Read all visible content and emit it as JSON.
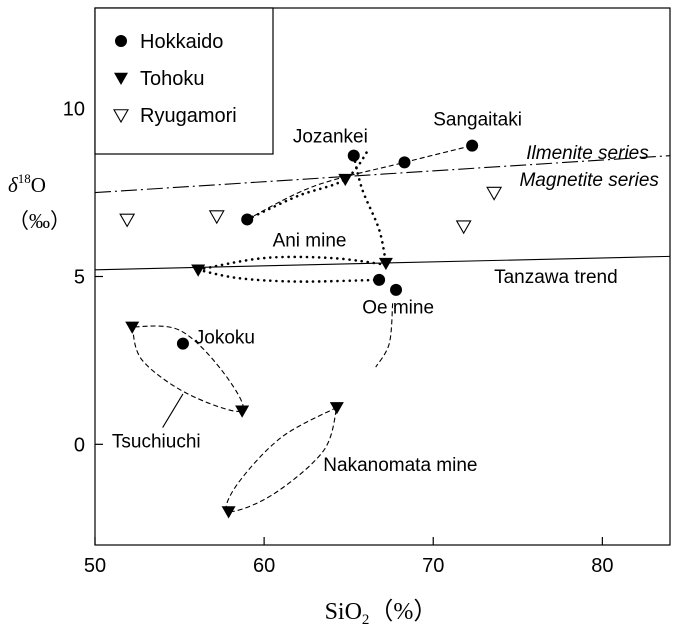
{
  "chart_data": {
    "type": "scatter",
    "xlabel_main": "SiO",
    "xlabel_sub": "2",
    "xlabel_unit": "（%）",
    "ylabel_delta": "δ",
    "ylabel_sup": "18",
    "ylabel_main": "O",
    "ylabel_unit": "（‰）",
    "xlim": [
      50,
      84
    ],
    "ylim": [
      -3,
      13
    ],
    "x_ticks": [
      50,
      60,
      70,
      80
    ],
    "y_ticks": [
      0,
      5,
      10
    ],
    "grid": false,
    "legend_position": "top-left",
    "legend": [
      {
        "name": "Hokkaido",
        "marker": "filled-circle"
      },
      {
        "name": "Tohoku",
        "marker": "filled-triangle-down"
      },
      {
        "name": "Ryugamori",
        "marker": "open-triangle-down"
      }
    ],
    "series": [
      {
        "name": "Hokkaido",
        "marker": "filled-circle",
        "points": [
          [
            59.0,
            6.7
          ],
          [
            65.3,
            8.6
          ],
          [
            68.3,
            8.4
          ],
          [
            72.3,
            8.9
          ],
          [
            66.8,
            4.9
          ],
          [
            67.8,
            4.6
          ],
          [
            55.2,
            3.0
          ]
        ]
      },
      {
        "name": "Tohoku",
        "marker": "filled-triangle-down",
        "points": [
          [
            64.8,
            7.9
          ],
          [
            56.1,
            5.2
          ],
          [
            67.2,
            5.4
          ],
          [
            52.2,
            3.5
          ],
          [
            58.7,
            1.0
          ],
          [
            64.3,
            1.1
          ],
          [
            57.9,
            -2.0
          ]
        ]
      },
      {
        "name": "Ryugamori",
        "marker": "open-triangle-down",
        "points": [
          [
            51.9,
            6.7
          ],
          [
            57.2,
            6.8
          ],
          [
            71.8,
            6.5
          ],
          [
            73.6,
            7.5
          ]
        ]
      }
    ],
    "reference_lines": [
      {
        "label": "Ilmenite series",
        "style": "dash-dot",
        "from": [
          50,
          7.5
        ],
        "to": [
          84,
          8.6
        ]
      },
      {
        "label": "Tanzawa trend",
        "style": "solid",
        "from": [
          50,
          5.2
        ],
        "to": [
          84,
          5.6
        ]
      }
    ],
    "dotted_curves": [
      {
        "points": [
          [
            59.0,
            6.7
          ],
          [
            62.0,
            7.4
          ],
          [
            64.8,
            7.9
          ],
          [
            66.2,
            8.8
          ]
        ]
      },
      {
        "points": [
          [
            65.3,
            8.6
          ],
          [
            65.8,
            7.6
          ],
          [
            66.8,
            6.4
          ],
          [
            67.2,
            5.4
          ]
        ]
      },
      {
        "points": [
          [
            56.1,
            5.2
          ],
          [
            60.0,
            5.55
          ],
          [
            64.0,
            5.55
          ],
          [
            67.2,
            5.35
          ]
        ]
      },
      {
        "points": [
          [
            56.1,
            5.2
          ],
          [
            58.5,
            4.95
          ],
          [
            62.0,
            4.85
          ],
          [
            66.8,
            4.9
          ]
        ]
      }
    ],
    "dashed_curves": [
      {
        "points": [
          [
            59.0,
            6.7
          ],
          [
            63.0,
            7.7
          ],
          [
            68.3,
            8.4
          ],
          [
            72.3,
            8.9
          ]
        ]
      },
      {
        "points": [
          [
            67.6,
            4.2
          ],
          [
            67.4,
            3.0
          ],
          [
            66.6,
            2.3
          ]
        ]
      },
      {
        "points": [
          [
            52.2,
            3.5
          ],
          [
            52.8,
            2.5
          ],
          [
            55.5,
            1.5
          ],
          [
            58.7,
            1.0
          ],
          [
            57.5,
            2.2
          ],
          [
            55.0,
            3.4
          ],
          [
            52.2,
            3.5
          ]
        ]
      },
      {
        "points": [
          [
            64.3,
            1.1
          ],
          [
            61.0,
            0.2
          ],
          [
            58.4,
            -1.2
          ],
          [
            57.9,
            -2.0
          ],
          [
            60.5,
            -1.5
          ],
          [
            63.5,
            -0.2
          ],
          [
            64.3,
            1.1
          ]
        ]
      }
    ],
    "annotations": [
      {
        "text": "Sangaitaki",
        "x": 70.0,
        "y": 9.5,
        "italic": false
      },
      {
        "text": "Jozankei",
        "x": 61.7,
        "y": 9.0,
        "italic": false
      },
      {
        "text": "Ilmenite series",
        "x": 75.5,
        "y": 8.5,
        "italic": true
      },
      {
        "text": "Magnetite series",
        "x": 75.1,
        "y": 7.7,
        "italic": true
      },
      {
        "text": "Ani mine",
        "x": 60.5,
        "y": 5.9,
        "italic": false
      },
      {
        "text": "Tanzawa trend",
        "x": 73.6,
        "y": 4.8,
        "italic": false
      },
      {
        "text": "Oe mine",
        "x": 65.8,
        "y": 3.9,
        "italic": false
      },
      {
        "text": "Jokoku",
        "x": 55.9,
        "y": 3.0,
        "italic": false
      },
      {
        "text": "Tsuchiuchi",
        "x": 51.0,
        "y": -0.1,
        "italic": false
      },
      {
        "text": "Nakanomata mine",
        "x": 63.5,
        "y": -0.8,
        "italic": false
      }
    ],
    "leader_lines": [
      {
        "from": [
          54.0,
          0.5
        ],
        "to": [
          55.2,
          1.5
        ]
      }
    ]
  }
}
